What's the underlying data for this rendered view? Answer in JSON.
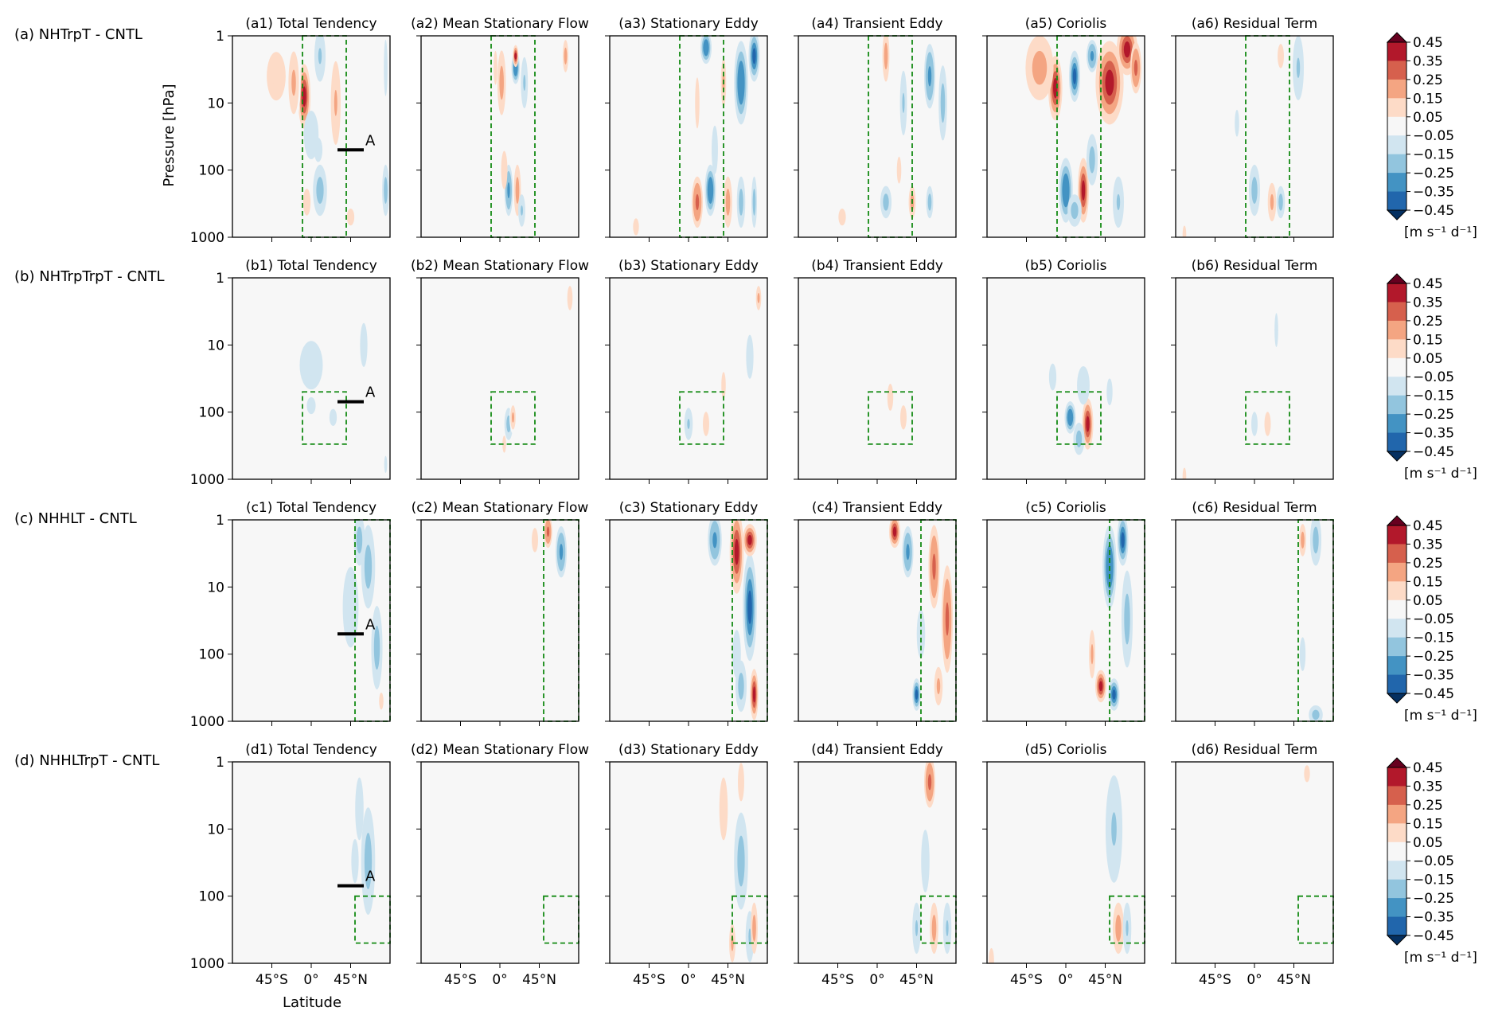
{
  "figure": {
    "ylabel": "Pressure [hPa]",
    "xlabel": "Latitude",
    "colorbar_unit": "[m s⁻¹ d⁻¹]"
  },
  "chart_data": {
    "type": "heatmap",
    "rows": [
      {
        "id": "a",
        "label": "(a) NHTrpT - CNTL"
      },
      {
        "id": "b",
        "label": "(b) NHTrpTrpT - CNTL"
      },
      {
        "id": "c",
        "label": "(c) NHHLT - CNTL"
      },
      {
        "id": "d",
        "label": "(d) NHHLTrpT - CNTL"
      }
    ],
    "columns": [
      "Total Tendency",
      "Mean Stationary Flow",
      "Stationary Eddy",
      "Transient Eddy",
      "Coriolis",
      "Residual Term"
    ],
    "panel_titles": [
      [
        "(a1) Total Tendency",
        "(a2) Mean Stationary Flow",
        "(a3) Stationary Eddy",
        "(a4) Transient Eddy",
        "(a5) Coriolis",
        "(a6) Residual Term"
      ],
      [
        "(b1) Total Tendency",
        "(b2) Mean Stationary Flow",
        "(b3) Stationary Eddy",
        "(b4) Transient Eddy",
        "(b5) Coriolis",
        "(b6) Residual Term"
      ],
      [
        "(c1) Total Tendency",
        "(c2) Mean Stationary Flow",
        "(c3) Stationary Eddy",
        "(c4) Transient Eddy",
        "(c5) Coriolis",
        "(c6) Residual Term"
      ],
      [
        "(d1) Total Tendency",
        "(d2) Mean Stationary Flow",
        "(d3) Stationary Eddy",
        "(d4) Transient Eddy",
        "(d5) Coriolis",
        "(d6) Residual Term"
      ]
    ],
    "y_axis": {
      "scale": "log",
      "inverted": true,
      "ylim": [
        1000,
        1
      ],
      "ticks": [
        1,
        10,
        100,
        1000
      ],
      "tick_labels": [
        "1",
        "10",
        "100",
        "1000"
      ]
    },
    "x_axis": {
      "xlim": [
        -90,
        90
      ],
      "ticks": [
        -45,
        0,
        45
      ],
      "tick_labels": [
        "45°S",
        "0°",
        "45°N"
      ]
    },
    "colorbar": {
      "levels": [
        0.45,
        0.35,
        0.25,
        0.15,
        0.05,
        -0.05,
        -0.15,
        -0.25,
        -0.35,
        -0.45
      ],
      "tick_labels": [
        "0.45",
        "0.35",
        "0.25",
        "0.15",
        "0.05",
        "−0.05",
        "−0.15",
        "−0.25",
        "−0.35",
        "−0.45"
      ],
      "colors": [
        "#67001f",
        "#b2182b",
        "#d6604d",
        "#f4a582",
        "#fddbc7",
        "#f7f7f7",
        "#d1e5f0",
        "#92c5de",
        "#4393c3",
        "#2166ac",
        "#053061"
      ],
      "extend": "both"
    },
    "forcing_boxes": [
      {
        "row": "a",
        "lat": [
          -10,
          40
        ],
        "p": [
          1,
          1000
        ]
      },
      {
        "row": "b",
        "lat": [
          -10,
          40
        ],
        "p": [
          50,
          300
        ]
      },
      {
        "row": "c",
        "lat": [
          50,
          90
        ],
        "p": [
          1,
          1000
        ]
      },
      {
        "row": "d",
        "lat": [
          50,
          90
        ],
        "p": [
          100,
          500
        ]
      }
    ],
    "markers": [
      {
        "row": "a",
        "label": "A",
        "lat": [
          30,
          60
        ],
        "p": 50
      },
      {
        "row": "b",
        "label": "A",
        "lat": [
          30,
          60
        ],
        "p": 70
      },
      {
        "row": "c",
        "label": "A",
        "lat": [
          30,
          60
        ],
        "p": 50
      },
      {
        "row": "d",
        "label": "A",
        "lat": [
          30,
          60
        ],
        "p": 70
      }
    ],
    "blobs": [
      [
        [
          [
            -8,
            8,
            0.45,
            9,
            4
          ],
          [
            -20,
            5,
            0.2,
            10,
            6
          ],
          [
            28,
            10,
            0.22,
            7,
            6
          ],
          [
            10,
            2,
            -0.2,
            8,
            3
          ],
          [
            0,
            30,
            -0.12,
            14,
            4
          ],
          [
            8,
            50,
            -0.15,
            8,
            2
          ],
          [
            10,
            200,
            -0.3,
            10,
            3
          ],
          [
            -5,
            300,
            0.1,
            10,
            3
          ],
          [
            85,
            200,
            -0.25,
            5,
            3
          ],
          [
            85,
            3,
            -0.1,
            5,
            10
          ],
          [
            -40,
            4,
            0.15,
            18,
            4
          ],
          [
            45,
            500,
            0.08,
            10,
            2
          ]
        ],
        [
          [
            18,
            3,
            -0.4,
            6,
            2
          ],
          [
            18,
            2,
            0.45,
            4,
            1.6
          ],
          [
            2,
            5,
            0.25,
            6,
            4
          ],
          [
            28,
            5,
            -0.2,
            5,
            3
          ],
          [
            75,
            2,
            0.25,
            4,
            2
          ],
          [
            -5,
            3,
            0.1,
            5,
            4
          ],
          [
            10,
            200,
            -0.35,
            6,
            3
          ],
          [
            20,
            200,
            0.25,
            5,
            3
          ],
          [
            5,
            100,
            0.15,
            6,
            3
          ],
          [
            25,
            400,
            -0.2,
            5,
            2
          ]
        ],
        [
          [
            20,
            1.5,
            -0.4,
            8,
            2
          ],
          [
            40,
            5,
            0.2,
            5,
            4
          ],
          [
            60,
            5,
            -0.4,
            10,
            6
          ],
          [
            75,
            2,
            -0.45,
            8,
            3
          ],
          [
            10,
            300,
            0.35,
            8,
            3
          ],
          [
            25,
            200,
            -0.4,
            8,
            3
          ],
          [
            45,
            300,
            0.25,
            6,
            3
          ],
          [
            60,
            300,
            -0.3,
            6,
            3
          ],
          [
            75,
            300,
            -0.3,
            4,
            3
          ],
          [
            10,
            10,
            0.1,
            6,
            8
          ],
          [
            30,
            50,
            -0.15,
            6,
            4
          ],
          [
            -60,
            700,
            0.08,
            8,
            2
          ]
        ],
        [
          [
            10,
            2,
            0.3,
            5,
            3
          ],
          [
            30,
            10,
            -0.2,
            5,
            4
          ],
          [
            60,
            4,
            -0.35,
            8,
            4
          ],
          [
            75,
            10,
            -0.3,
            6,
            5
          ],
          [
            10,
            300,
            -0.3,
            8,
            2
          ],
          [
            40,
            300,
            0.3,
            5,
            2
          ],
          [
            60,
            300,
            -0.3,
            5,
            2
          ],
          [
            -40,
            500,
            0.08,
            10,
            2
          ],
          [
            25,
            100,
            0.1,
            6,
            3
          ]
        ],
        [
          [
            -12,
            6,
            0.45,
            10,
            4
          ],
          [
            -30,
            3,
            0.3,
            20,
            4
          ],
          [
            10,
            4,
            -0.45,
            8,
            3
          ],
          [
            50,
            5,
            0.45,
            20,
            6
          ],
          [
            30,
            2,
            -0.35,
            8,
            2
          ],
          [
            70,
            1.6,
            0.45,
            15,
            3
          ],
          [
            0,
            200,
            -0.4,
            10,
            4
          ],
          [
            20,
            200,
            0.45,
            8,
            4
          ],
          [
            10,
            400,
            -0.3,
            10,
            2
          ],
          [
            30,
            70,
            -0.3,
            8,
            3
          ],
          [
            60,
            300,
            -0.2,
            8,
            3
          ],
          [
            80,
            3,
            0.35,
            8,
            3
          ]
        ],
        [
          [
            50,
            3,
            -0.2,
            8,
            4
          ],
          [
            30,
            2,
            0.15,
            6,
            2
          ],
          [
            0,
            200,
            -0.25,
            8,
            3
          ],
          [
            20,
            300,
            0.2,
            8,
            3
          ],
          [
            30,
            300,
            -0.3,
            6,
            2
          ],
          [
            -20,
            20,
            -0.08,
            6,
            3
          ],
          [
            -80,
            900,
            0.1,
            5,
            2
          ]
        ]
      ],
      [
        [
          [
            0,
            20,
            -0.12,
            22,
            4
          ],
          [
            60,
            10,
            -0.1,
            10,
            6
          ],
          [
            0,
            80,
            -0.08,
            12,
            2
          ],
          [
            25,
            120,
            -0.08,
            10,
            2
          ],
          [
            85,
            600,
            -0.1,
            4,
            2
          ]
        ],
        [
          [
            10,
            150,
            -0.3,
            6,
            2
          ],
          [
            15,
            120,
            0.2,
            5,
            2
          ],
          [
            80,
            2,
            0.15,
            5,
            2
          ],
          [
            5,
            300,
            0.1,
            5,
            2
          ]
        ],
        [
          [
            0,
            150,
            -0.2,
            6,
            2
          ],
          [
            20,
            150,
            0.15,
            6,
            2
          ],
          [
            70,
            15,
            -0.1,
            10,
            6
          ],
          [
            40,
            40,
            0.1,
            6,
            3
          ],
          [
            80,
            2,
            0.2,
            5,
            2
          ]
        ],
        [
          [
            15,
            60,
            0.1,
            8,
            3
          ],
          [
            30,
            120,
            0.12,
            6,
            2
          ],
          [
            -10,
            500,
            0.05,
            15,
            2
          ]
        ],
        [
          [
            5,
            120,
            -0.4,
            8,
            2
          ],
          [
            25,
            150,
            0.45,
            8,
            3
          ],
          [
            15,
            250,
            -0.3,
            8,
            2
          ],
          [
            20,
            40,
            -0.12,
            12,
            3
          ],
          [
            -15,
            30,
            -0.08,
            10,
            3
          ],
          [
            50,
            50,
            -0.1,
            8,
            3
          ]
        ],
        [
          [
            15,
            150,
            0.12,
            6,
            2
          ],
          [
            0,
            150,
            -0.12,
            6,
            2
          ],
          [
            25,
            6,
            -0.08,
            5,
            4
          ],
          [
            -80,
            900,
            0.08,
            5,
            2
          ]
        ]
      ],
      [
        [
          [
            45,
            20,
            -0.15,
            15,
            10
          ],
          [
            65,
            5,
            -0.3,
            10,
            6
          ],
          [
            55,
            2,
            -0.3,
            8,
            3
          ],
          [
            80,
            500,
            0.1,
            6,
            2
          ],
          [
            75,
            80,
            -0.25,
            8,
            6
          ]
        ],
        [
          [
            55,
            1.5,
            0.35,
            6,
            2
          ],
          [
            70,
            3,
            -0.35,
            8,
            3
          ],
          [
            40,
            2,
            0.12,
            6,
            2
          ]
        ],
        [
          [
            30,
            2,
            -0.35,
            10,
            3
          ],
          [
            55,
            3,
            0.45,
            10,
            6
          ],
          [
            70,
            20,
            -0.45,
            10,
            10
          ],
          [
            70,
            2,
            0.45,
            10,
            2
          ],
          [
            60,
            300,
            -0.3,
            8,
            3
          ],
          [
            75,
            400,
            0.45,
            6,
            3
          ],
          [
            55,
            100,
            -0.15,
            8,
            4
          ]
        ],
        [
          [
            20,
            1.5,
            0.45,
            8,
            2
          ],
          [
            35,
            3,
            -0.35,
            8,
            3
          ],
          [
            65,
            5,
            0.35,
            8,
            6
          ],
          [
            80,
            30,
            0.35,
            8,
            10
          ],
          [
            45,
            400,
            -0.45,
            6,
            2
          ],
          [
            70,
            300,
            0.2,
            8,
            3
          ],
          [
            50,
            50,
            -0.15,
            8,
            4
          ]
        ],
        [
          [
            50,
            5,
            -0.4,
            10,
            6
          ],
          [
            65,
            2,
            -0.45,
            8,
            3
          ],
          [
            40,
            300,
            0.45,
            8,
            2
          ],
          [
            55,
            400,
            -0.45,
            8,
            2
          ],
          [
            30,
            100,
            0.2,
            6,
            4
          ],
          [
            70,
            30,
            -0.3,
            8,
            8
          ]
        ],
        [
          [
            70,
            2,
            -0.3,
            8,
            3
          ],
          [
            55,
            2,
            0.25,
            5,
            2
          ],
          [
            70,
            800,
            -0.3,
            10,
            1.5
          ],
          [
            55,
            100,
            -0.08,
            8,
            4
          ]
        ]
      ],
      [
        [
          [
            65,
            30,
            -0.25,
            10,
            10
          ],
          [
            50,
            30,
            -0.1,
            10,
            6
          ],
          [
            55,
            5,
            -0.12,
            8,
            6
          ]
        ],
        [
          [
            80,
            5,
            -0.05,
            4,
            10
          ]
        ],
        [
          [
            60,
            30,
            -0.3,
            10,
            8
          ],
          [
            40,
            5,
            0.15,
            8,
            6
          ],
          [
            50,
            500,
            0.2,
            6,
            3
          ],
          [
            70,
            400,
            -0.2,
            6,
            3
          ],
          [
            75,
            300,
            0.3,
            5,
            3
          ],
          [
            60,
            2,
            0.15,
            6,
            3
          ]
        ],
        [
          [
            60,
            2,
            0.35,
            8,
            3
          ],
          [
            55,
            30,
            -0.12,
            8,
            6
          ],
          [
            45,
            300,
            -0.2,
            6,
            3
          ],
          [
            65,
            300,
            0.25,
            6,
            3
          ],
          [
            80,
            300,
            -0.2,
            6,
            3
          ]
        ],
        [
          [
            55,
            10,
            -0.2,
            12,
            10
          ],
          [
            60,
            300,
            0.3,
            8,
            3
          ],
          [
            70,
            300,
            -0.2,
            6,
            3
          ],
          [
            -85,
            900,
            0.12,
            5,
            2
          ]
        ],
        [
          [
            60,
            1.5,
            0.1,
            8,
            2
          ],
          [
            30,
            300,
            -0.06,
            6,
            3
          ]
        ]
      ]
    ]
  }
}
